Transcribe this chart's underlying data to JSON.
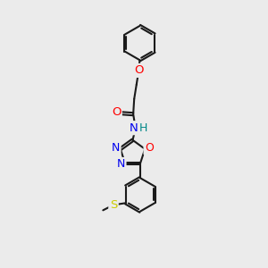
{
  "bg_color": "#ebebeb",
  "bond_color": "#1a1a1a",
  "bond_width": 1.5,
  "atom_colors": {
    "O": "#ff0000",
    "N": "#0000ee",
    "S": "#cccc00",
    "H": "#008888",
    "C": "#1a1a1a"
  },
  "xlim": [
    0,
    10
  ],
  "ylim": [
    0,
    14
  ]
}
